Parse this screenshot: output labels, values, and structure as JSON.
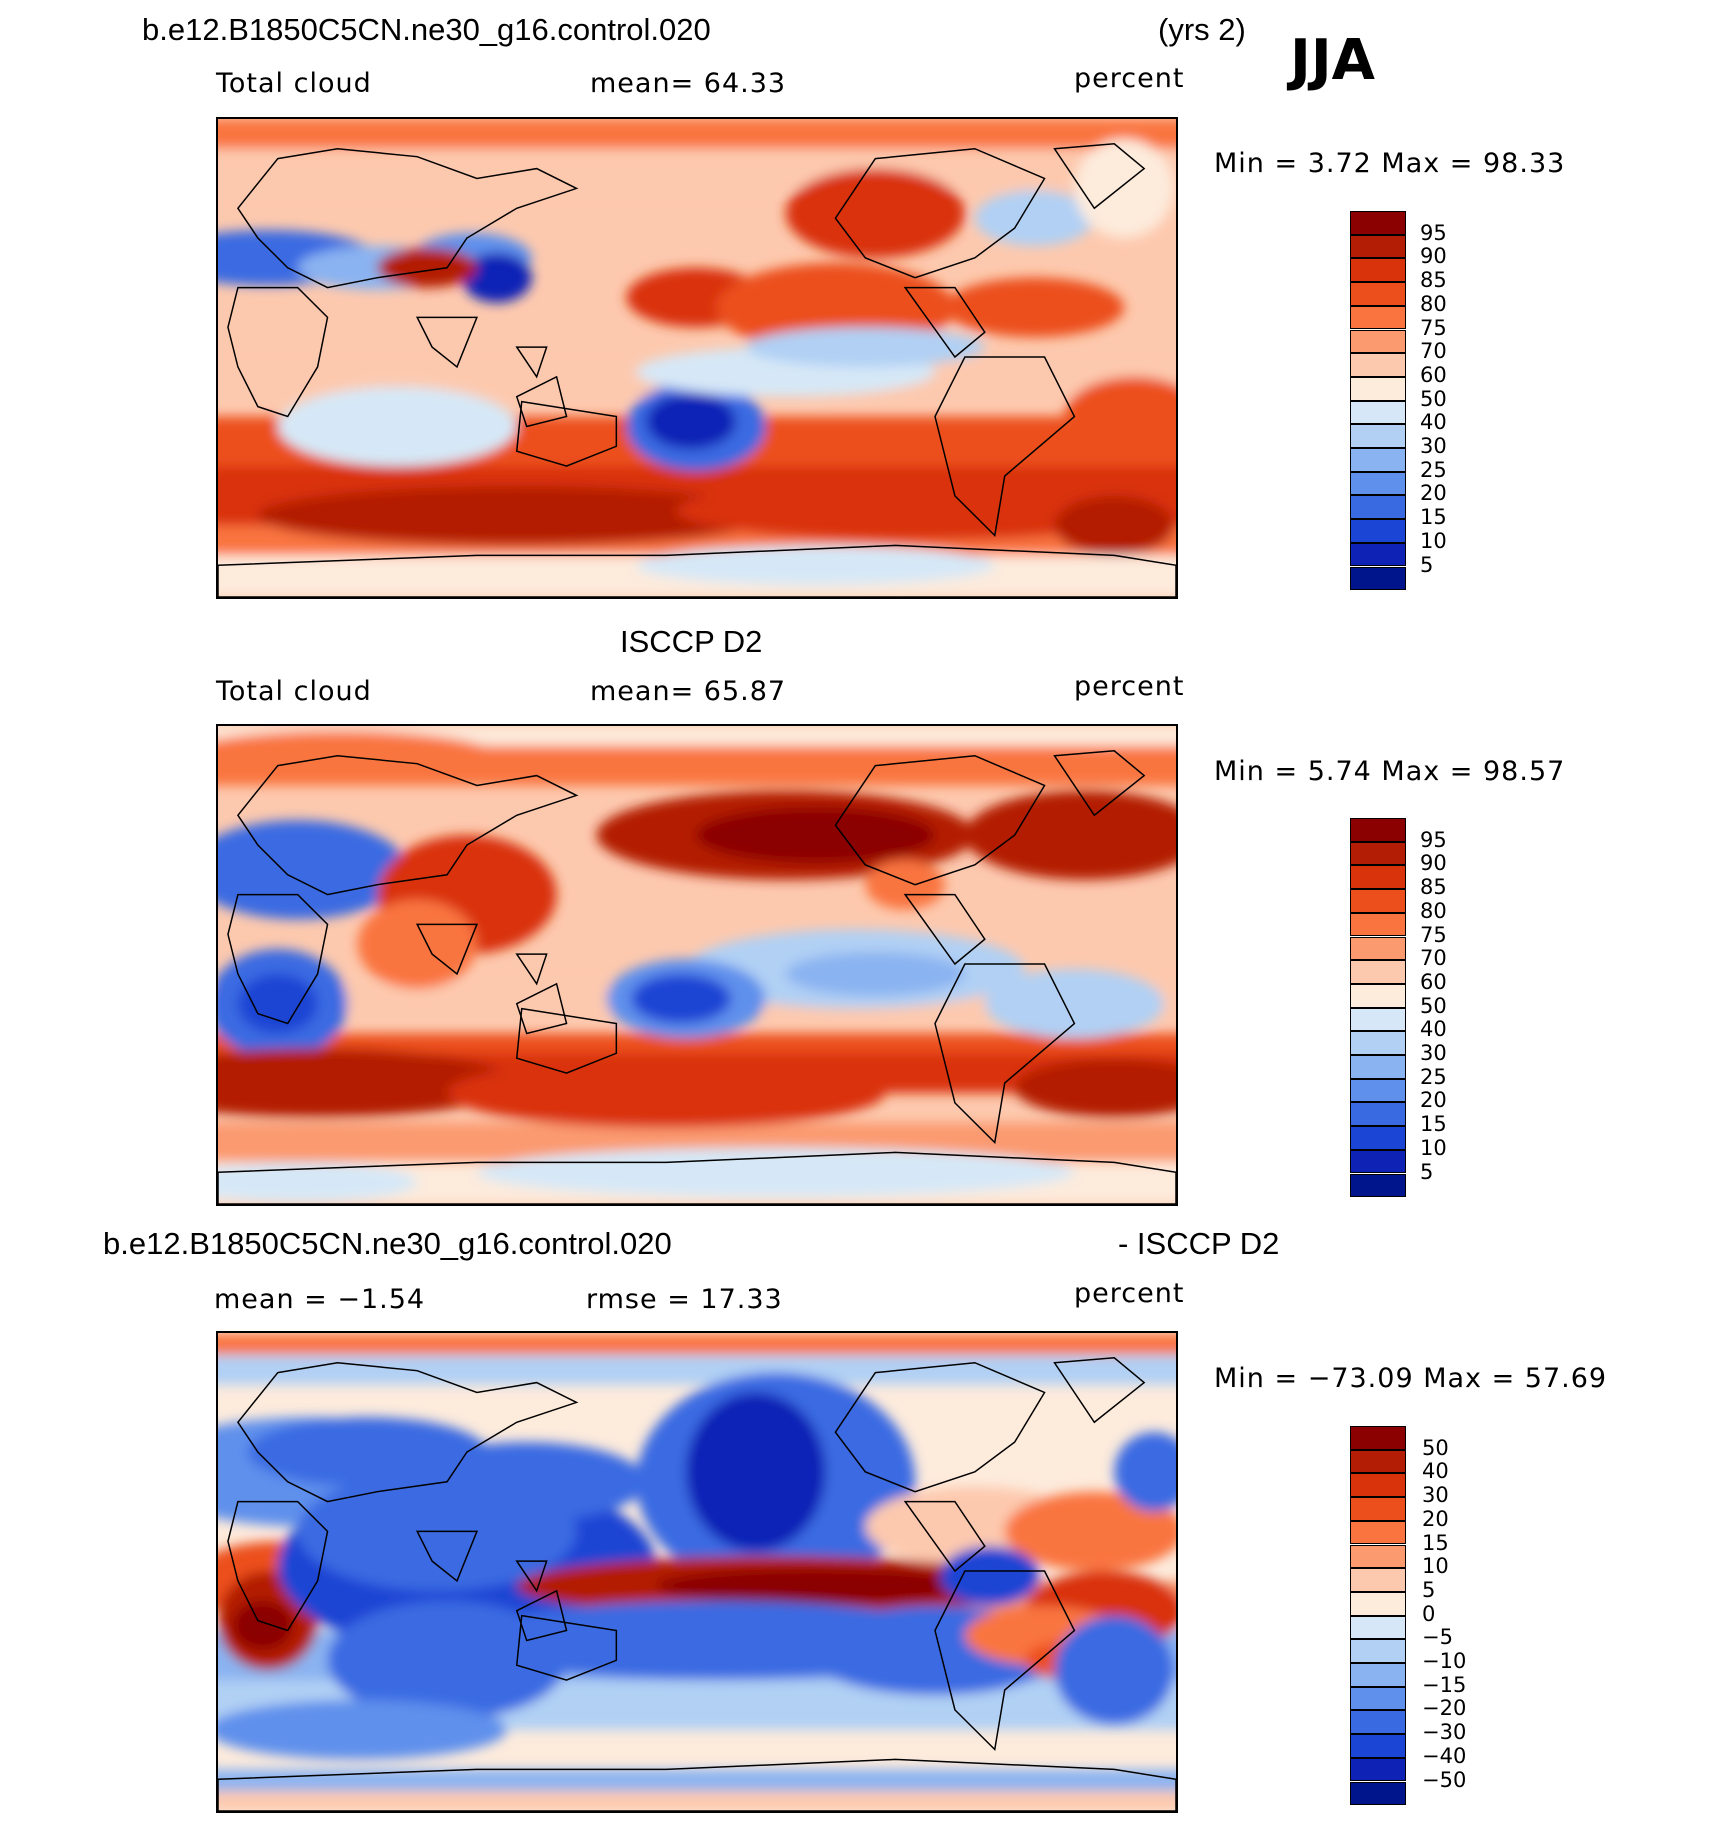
{
  "header": {
    "case_title": "b.e12.B1850C5CN.ne30_g16.control.020",
    "years": "(yrs 2)",
    "season": "JJA"
  },
  "panels": [
    {
      "id": "model",
      "title": "",
      "variable": "Total cloud",
      "stat": "mean=   64.33",
      "units": "percent",
      "minmax": "Min =     3.72 Max =    98.33"
    },
    {
      "id": "obs",
      "title": "ISCCP D2",
      "variable": "Total cloud",
      "stat": "mean=   65.87",
      "units": "percent",
      "minmax": "Min =     5.74 Max =    98.57"
    },
    {
      "id": "diff",
      "title_left": "b.e12.B1850C5CN.ne30_g16.control.020",
      "title_right": "- ISCCP D2",
      "stat_mean": "mean  =   −1.54",
      "stat_rmse": "rmse  =    17.33",
      "units": "percent",
      "minmax": "Min = −73.09 Max =    57.69"
    }
  ],
  "chart_data": [
    {
      "type": "heatmap",
      "title": "b.e12.B1850C5CN.ne30_g16.control.020 (yrs 2) JJA",
      "subtitle": "Total cloud",
      "units": "percent",
      "mean": 64.33,
      "min": 3.72,
      "max": 98.33,
      "colorbar_levels": [
        95,
        90,
        85,
        80,
        75,
        70,
        60,
        50,
        40,
        30,
        25,
        20,
        15,
        10,
        5
      ]
    },
    {
      "type": "heatmap",
      "title": "ISCCP D2",
      "subtitle": "Total cloud",
      "units": "percent",
      "mean": 65.87,
      "min": 5.74,
      "max": 98.57,
      "colorbar_levels": [
        95,
        90,
        85,
        80,
        75,
        70,
        60,
        50,
        40,
        30,
        25,
        20,
        15,
        10,
        5
      ]
    },
    {
      "type": "heatmap",
      "title": "b.e12.B1850C5CN.ne30_g16.control.020 - ISCCP D2",
      "units": "percent",
      "mean": -1.54,
      "rmse": 17.33,
      "min": -73.09,
      "max": 57.69,
      "colorbar_levels": [
        "50",
        "40",
        "30",
        "20",
        "15",
        "10",
        "5",
        "0",
        "−5",
        "−10",
        "−15",
        "−20",
        "−30",
        "−40",
        "−50"
      ]
    }
  ],
  "colors": {
    "palette": [
      "#8b0000",
      "#b31d06",
      "#d9330b",
      "#ec4f1c",
      "#f9743f",
      "#fb9a6f",
      "#fdc9ae",
      "#fdebdc",
      "#d6e8f7",
      "#b1d0f4",
      "#8ab3f1",
      "#5f90ec",
      "#3a6ae2",
      "#1b45d4",
      "#0f22b6",
      "#00148c"
    ]
  }
}
